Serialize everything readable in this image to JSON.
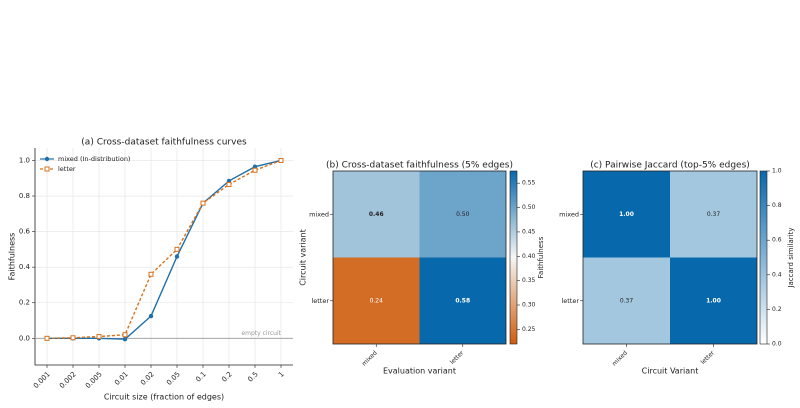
{
  "chart_data": [
    {
      "type": "line",
      "title": "(a) Cross-dataset faithfulness curves",
      "x_label": "Circuit size (fraction of edges)",
      "y_label": "Faithfulness",
      "categories": [
        "0.001",
        "0.002",
        "0.005",
        "0.01",
        "0.02",
        "0.05",
        "0.1",
        "0.2",
        "0.5",
        "1"
      ],
      "series": [
        {
          "name": "mixed (In-distribution)",
          "color": "#1f6fa8",
          "marker": "circle",
          "dash": false,
          "values": [
            0.0,
            0.0,
            0.0,
            -0.005,
            0.125,
            0.46,
            0.76,
            0.885,
            0.965,
            1.0
          ]
        },
        {
          "name": "letter",
          "color": "#d9711b",
          "marker": "square",
          "dash": true,
          "values": [
            0.0,
            0.003,
            0.01,
            0.02,
            0.36,
            0.5,
            0.76,
            0.865,
            0.945,
            1.0
          ]
        }
      ],
      "ylim": [
        -0.15,
        1.07
      ],
      "yticks": [
        {
          "value": 0,
          "label": "0.0"
        },
        {
          "value": 0.2,
          "label": "0.2"
        },
        {
          "value": 0.4,
          "label": "0.4"
        },
        {
          "value": 0.6,
          "label": "0.6"
        },
        {
          "value": 0.8,
          "label": "0.8"
        },
        {
          "value": 1,
          "label": "1.0"
        }
      ],
      "grid": true,
      "legend": "upper left",
      "reference_line": {
        "value": 0,
        "label": "empty circuit"
      }
    },
    {
      "type": "heatmap",
      "title": "(b) Cross-dataset faithfulness (5% edges)",
      "x_label": "Evaluation variant",
      "y_label": "Circuit variant",
      "colorbar_label": "Faithfulness",
      "rows": [
        "mixed",
        "letter"
      ],
      "columns": [
        "mixed",
        "letter"
      ],
      "values": [
        [
          0.46,
          0.5
        ],
        [
          0.24,
          0.58
        ]
      ],
      "value_labels": [
        [
          "0.46",
          "0.50"
        ],
        [
          "0.24",
          "0.58"
        ]
      ],
      "clim": [
        0.22,
        0.575
      ],
      "colormap": [
        "#cf5c0c",
        "#f6f6f4",
        "#0868ac"
      ],
      "cticks": [
        {
          "value": 0.25,
          "label": "0.25"
        },
        {
          "value": 0.3,
          "label": "0.30"
        },
        {
          "value": 0.35,
          "label": "0.35"
        },
        {
          "value": 0.4,
          "label": "0.40"
        },
        {
          "value": 0.45,
          "label": "0.45"
        },
        {
          "value": 0.5,
          "label": "0.50"
        },
        {
          "value": 0.55,
          "label": "0.55"
        }
      ]
    },
    {
      "type": "heatmap",
      "title": "(c) Pairwise Jaccard (top-5% edges)",
      "x_label": "Circuit Variant",
      "colorbar_label": "Jaccard similarity",
      "rows": [
        "mixed",
        "letter"
      ],
      "columns": [
        "mixed",
        "letter"
      ],
      "values": [
        [
          1.0,
          0.37
        ],
        [
          0.37,
          1.0
        ]
      ],
      "value_labels": [
        [
          "1.00",
          "0.37"
        ],
        [
          "0.37",
          "1.00"
        ]
      ],
      "clim": [
        0,
        1
      ],
      "colormap": [
        "#ffffff",
        "#0868ac"
      ],
      "cticks": [
        {
          "value": 0,
          "label": "0.0"
        },
        {
          "value": 0.2,
          "label": "0.2"
        },
        {
          "value": 0.4,
          "label": "0.4"
        },
        {
          "value": 0.6,
          "label": "0.6"
        },
        {
          "value": 0.8,
          "label": "0.8"
        },
        {
          "value": 1,
          "label": "1.0"
        }
      ]
    }
  ]
}
